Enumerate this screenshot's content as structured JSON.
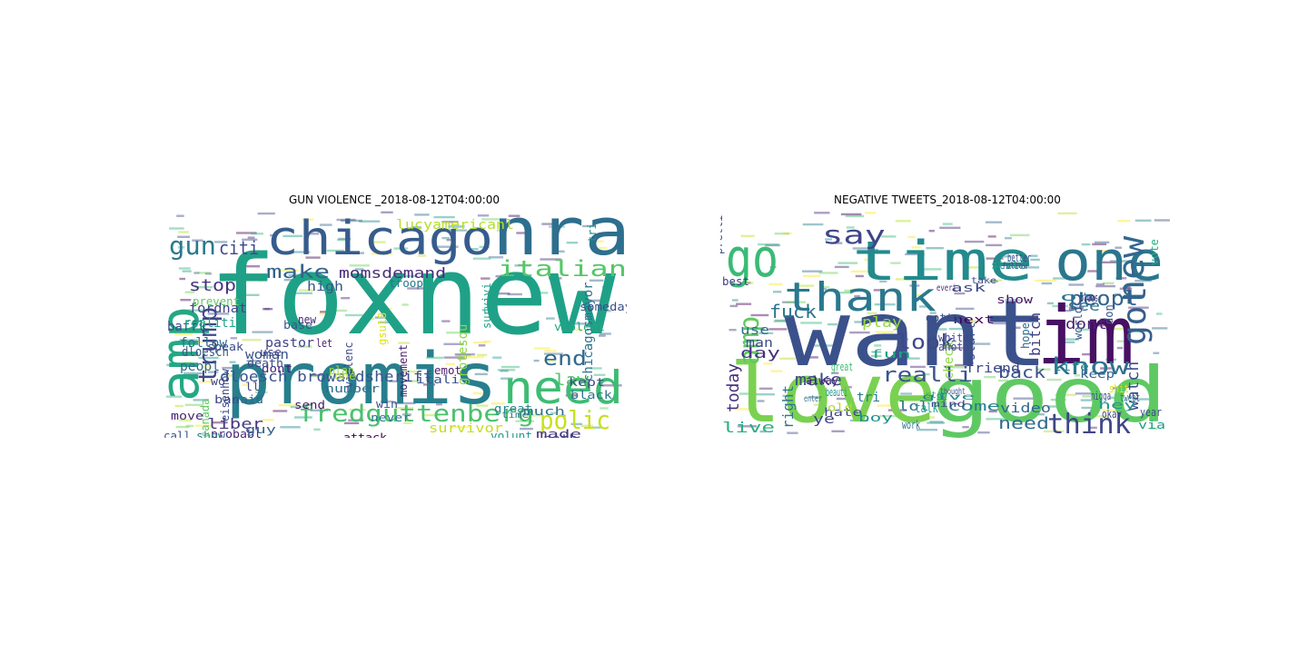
{
  "figure": {
    "panels": [
      {
        "title": "GUN VIOLENCE _2018-08-12T04:00:00",
        "words": [
          {
            "text": "foxnew",
            "color": "#1fa187"
          },
          {
            "text": "promis",
            "color": "#277f8e"
          },
          {
            "text": "nra",
            "color": "#2e6e8e"
          },
          {
            "text": "chicago",
            "color": "#365c8d"
          },
          {
            "text": "amp",
            "color": "#23a884"
          },
          {
            "text": "need",
            "color": "#3dbc74"
          },
          {
            "text": "italian",
            "color": "#56c667"
          },
          {
            "text": "fredguttenberg",
            "color": "#4ac16d"
          },
          {
            "text": "gun",
            "color": "#2a788e"
          },
          {
            "text": "trump",
            "color": "#3f4788"
          },
          {
            "text": "polic",
            "color": "#c8e020"
          },
          {
            "text": "citi",
            "color": "#3f4889"
          },
          {
            "text": "make",
            "color": "#33638d"
          },
          {
            "text": "momsdemand",
            "color": "#472c7a"
          },
          {
            "text": "end",
            "color": "#31678e"
          },
          {
            "text": "law",
            "color": "#54c568"
          },
          {
            "text": "stop",
            "color": "#46327e"
          },
          {
            "text": "dloesch browardsheriff",
            "color": "#3a548c"
          },
          {
            "text": "liber",
            "color": "#443983"
          },
          {
            "text": "lucyamericanl",
            "color": "#b5de2b"
          },
          {
            "text": "chicagosmayor",
            "color": "#2c728e"
          },
          {
            "text": "fordnat",
            "color": "#414487"
          },
          {
            "text": "baffl",
            "color": "#3e4a89"
          },
          {
            "text": "high",
            "color": "#39558c"
          },
          {
            "text": "realiti",
            "color": "#20a386"
          },
          {
            "text": "follow",
            "color": "#2d708e"
          },
          {
            "text": "dloesch",
            "color": "#38598c"
          },
          {
            "text": "peopl",
            "color": "#2f6c8e"
          },
          {
            "text": "woman",
            "color": "#3b528b"
          },
          {
            "text": "pastor",
            "color": "#414287"
          },
          {
            "text": "dont",
            "color": "#482475"
          },
          {
            "text": "said",
            "color": "#31668e"
          },
          {
            "text": "kept",
            "color": "#3e4c8a"
          },
          {
            "text": "black",
            "color": "#2a768e"
          },
          {
            "text": "much",
            "color": "#2d718e"
          },
          {
            "text": "made",
            "color": "#463480"
          },
          {
            "text": "survivor",
            "color": "#c2df23"
          },
          {
            "text": "grotesqu",
            "color": "#8bd646"
          },
          {
            "text": "great",
            "color": "#25848e"
          },
          {
            "text": "someday",
            "color": "#3d4e8a"
          },
          {
            "text": "violent",
            "color": "#22a785"
          },
          {
            "text": "number",
            "color": "#2e6d8e"
          },
          {
            "text": "movement",
            "color": "#481f70"
          },
          {
            "text": "eisenhow",
            "color": "#3c4f8a"
          },
          {
            "text": "itali",
            "color": "#3b518b"
          },
          {
            "text": "emot",
            "color": "#481a6c"
          },
          {
            "text": "move",
            "color": "#482878"
          },
          {
            "text": "violenc",
            "color": "#3d4d8a"
          },
          {
            "text": "attack",
            "color": "#440154"
          },
          {
            "text": "send",
            "color": "#481769"
          },
          {
            "text": "plan",
            "color": "#a0da39"
          },
          {
            "text": "ban",
            "color": "#3f4788"
          },
          {
            "text": "probabl",
            "color": "#482576"
          },
          {
            "text": "guy",
            "color": "#33638d"
          },
          {
            "text": "never",
            "color": "#2b748e"
          },
          {
            "text": "noth",
            "color": "#3f4788"
          },
          {
            "text": "show",
            "color": "#297b8e"
          },
          {
            "text": "call",
            "color": "#3a548c"
          },
          {
            "text": "ll",
            "color": "#404588"
          },
          {
            "text": "win",
            "color": "#3b528b"
          },
          {
            "text": "time",
            "color": "#2b758e"
          },
          {
            "text": "volunt",
            "color": "#1f988b"
          },
          {
            "text": "canada",
            "color": "#5ec962"
          },
          {
            "text": "speak",
            "color": "#3d4d8a"
          },
          {
            "text": "prevent",
            "color": "#5ec962"
          },
          {
            "text": "wo",
            "color": "#3f4788"
          },
          {
            "text": "base",
            "color": "#39568c"
          },
          {
            "text": "death",
            "color": "#3e4a89"
          },
          {
            "text": "let",
            "color": "#482071"
          },
          {
            "text": "use",
            "color": "#414487"
          },
          {
            "text": "new",
            "color": "#482173"
          },
          {
            "text": "survivi",
            "color": "#1fa287"
          },
          {
            "text": "troop",
            "color": "#2a778e"
          },
          {
            "text": "one",
            "color": "#addc30"
          },
          {
            "text": "tri",
            "color": "#21918c"
          },
          {
            "text": "gsu18",
            "color": "#dde318"
          }
        ]
      },
      {
        "title": "NEGATIVE TWEETS_2018-08-12T04:00:00",
        "words": [
          {
            "text": "want",
            "color": "#3b518b"
          },
          {
            "text": "love",
            "color": "#7ad151"
          },
          {
            "text": "good",
            "color": "#5ec962"
          },
          {
            "text": "im",
            "color": "#471063"
          },
          {
            "text": "time",
            "color": "#238a8d"
          },
          {
            "text": "one",
            "color": "#2a768e"
          },
          {
            "text": "go",
            "color": "#3aba76"
          },
          {
            "text": "thank",
            "color": "#2a788e"
          },
          {
            "text": "got",
            "color": "#365d8d"
          },
          {
            "text": "new",
            "color": "#31688e"
          },
          {
            "text": "amp",
            "color": "#5ec962"
          },
          {
            "text": "know",
            "color": "#2d708e"
          },
          {
            "text": "think",
            "color": "#404688"
          },
          {
            "text": "say",
            "color": "#404588"
          },
          {
            "text": "peopl",
            "color": "#33638d"
          },
          {
            "text": "fuck",
            "color": "#2c738e"
          },
          {
            "text": "realli",
            "color": "#3a548c"
          },
          {
            "text": "look",
            "color": "#3f4889"
          },
          {
            "text": "back",
            "color": "#3b528b"
          },
          {
            "text": "need",
            "color": "#2f6b8e"
          },
          {
            "text": "watch",
            "color": "#3d4e8a"
          },
          {
            "text": "make",
            "color": "#3e4989"
          },
          {
            "text": "today",
            "color": "#472d7b"
          },
          {
            "text": "live",
            "color": "#29af7f"
          },
          {
            "text": "right",
            "color": "#2a788e"
          },
          {
            "text": "bitch",
            "color": "#423f85"
          },
          {
            "text": "dont",
            "color": "#482173"
          },
          {
            "text": "see",
            "color": "#2c728e"
          },
          {
            "text": "play",
            "color": "#95d840"
          },
          {
            "text": "day",
            "color": "#46327e"
          },
          {
            "text": "use",
            "color": "#2f6b8e"
          },
          {
            "text": "man",
            "color": "#3e4c8a"
          },
          {
            "text": "check",
            "color": "#8fd744"
          },
          {
            "text": "start",
            "color": "#3c4f8a"
          },
          {
            "text": "friend",
            "color": "#3f4889"
          },
          {
            "text": "come",
            "color": "#27808e"
          },
          {
            "text": "video",
            "color": "#31688e"
          },
          {
            "text": "lol",
            "color": "#2d708e"
          },
          {
            "text": "talk",
            "color": "#1fa187"
          },
          {
            "text": "tri",
            "color": "#2a788e"
          },
          {
            "text": "ye",
            "color": "#404588"
          },
          {
            "text": "don",
            "color": "#3b518b"
          },
          {
            "text": "world",
            "color": "#3a548c"
          },
          {
            "text": "keep",
            "color": "#34608d"
          },
          {
            "text": "year",
            "color": "#3d4e8a"
          },
          {
            "text": "oh",
            "color": "#2c728e"
          },
          {
            "text": "show",
            "color": "#481467"
          },
          {
            "text": "hope",
            "color": "#2e6d8e"
          },
          {
            "text": "life",
            "color": "#24868e"
          },
          {
            "text": "nigga",
            "color": "#3b528b"
          },
          {
            "text": "okay",
            "color": "#414487"
          },
          {
            "text": "hey",
            "color": "#20938c"
          },
          {
            "text": "via",
            "color": "#1e9c89"
          },
          {
            "text": "beauti",
            "color": "#1f958b"
          },
          {
            "text": "hate",
            "color": "#3f4788"
          },
          {
            "text": "old",
            "color": "#aadc32"
          },
          {
            "text": "great",
            "color": "#3dbc74"
          },
          {
            "text": "boy",
            "color": "#21918c"
          },
          {
            "text": "fun",
            "color": "#20a386"
          },
          {
            "text": "enter",
            "color": "#2d708e"
          },
          {
            "text": "alway",
            "color": "#482475"
          },
          {
            "text": "next",
            "color": "#440154"
          },
          {
            "text": "anoth",
            "color": "#3e4a89"
          },
          {
            "text": "white",
            "color": "#3f4788"
          },
          {
            "text": "work",
            "color": "#2c738e"
          },
          {
            "text": "give",
            "color": "#25858e"
          },
          {
            "text": "mind",
            "color": "#414487"
          },
          {
            "text": "stop",
            "color": "#22a884"
          },
          {
            "text": "thought",
            "color": "#3a548c"
          },
          {
            "text": "gotta",
            "color": "#3b518b"
          },
          {
            "text": "best",
            "color": "#433e85"
          },
          {
            "text": "tweet",
            "color": "#2d708e"
          },
          {
            "text": "pleas",
            "color": "#46307e"
          },
          {
            "text": "ask",
            "color": "#3f4788"
          },
          {
            "text": "still",
            "color": "#1fa188"
          },
          {
            "text": "better",
            "color": "#3b528b"
          },
          {
            "text": "follow",
            "color": "#3c4f8a"
          },
          {
            "text": "shit",
            "color": "#dde318"
          },
          {
            "text": "take",
            "color": "#3e4a89"
          },
          {
            "text": "everi",
            "color": "#472a7a"
          },
          {
            "text": "pretti",
            "color": "#3d4d8a"
          },
          {
            "text": "vote",
            "color": "#25ac82"
          }
        ]
      }
    ]
  }
}
